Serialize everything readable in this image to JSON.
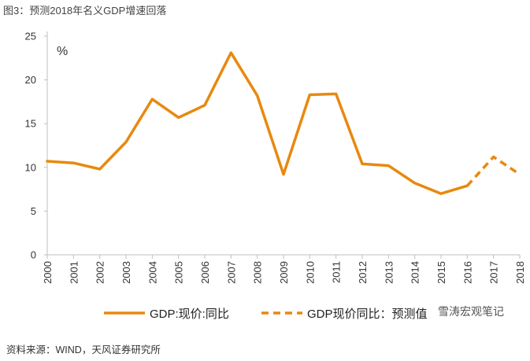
{
  "title": "图3：预测2018年名义GDP增速回落",
  "source": "资料来源：WIND，天风证券研究所",
  "watermark": "雪涛宏观笔记",
  "chart_data": {
    "type": "line",
    "unit_label": "%",
    "ylim": [
      0,
      25
    ],
    "yticks": [
      0,
      5,
      10,
      15,
      20,
      25
    ],
    "x": [
      "2000",
      "2001",
      "2002",
      "2003",
      "2004",
      "2005",
      "2006",
      "2007",
      "2008",
      "2009",
      "2010",
      "2011",
      "2012",
      "2013",
      "2014",
      "2015",
      "2016",
      "2017",
      "2018"
    ],
    "series": [
      {
        "name": "GDP:现价:同比",
        "style": "solid",
        "color": "#E8890F",
        "x": [
          "2000",
          "2001",
          "2002",
          "2003",
          "2004",
          "2005",
          "2006",
          "2007",
          "2008",
          "2009",
          "2010",
          "2011",
          "2012",
          "2013",
          "2014",
          "2015",
          "2016"
        ],
        "values": [
          10.7,
          10.5,
          9.8,
          12.9,
          17.8,
          15.7,
          17.1,
          23.1,
          18.2,
          9.2,
          18.3,
          18.4,
          10.4,
          10.2,
          8.2,
          7.0,
          7.9
        ]
      },
      {
        "name": "GDP现价同比：预测值",
        "style": "dashed",
        "color": "#E8890F",
        "x": [
          "2016",
          "2017",
          "2018"
        ],
        "values": [
          7.9,
          11.2,
          9.2
        ]
      }
    ],
    "grid": false,
    "legend": "bottom"
  }
}
